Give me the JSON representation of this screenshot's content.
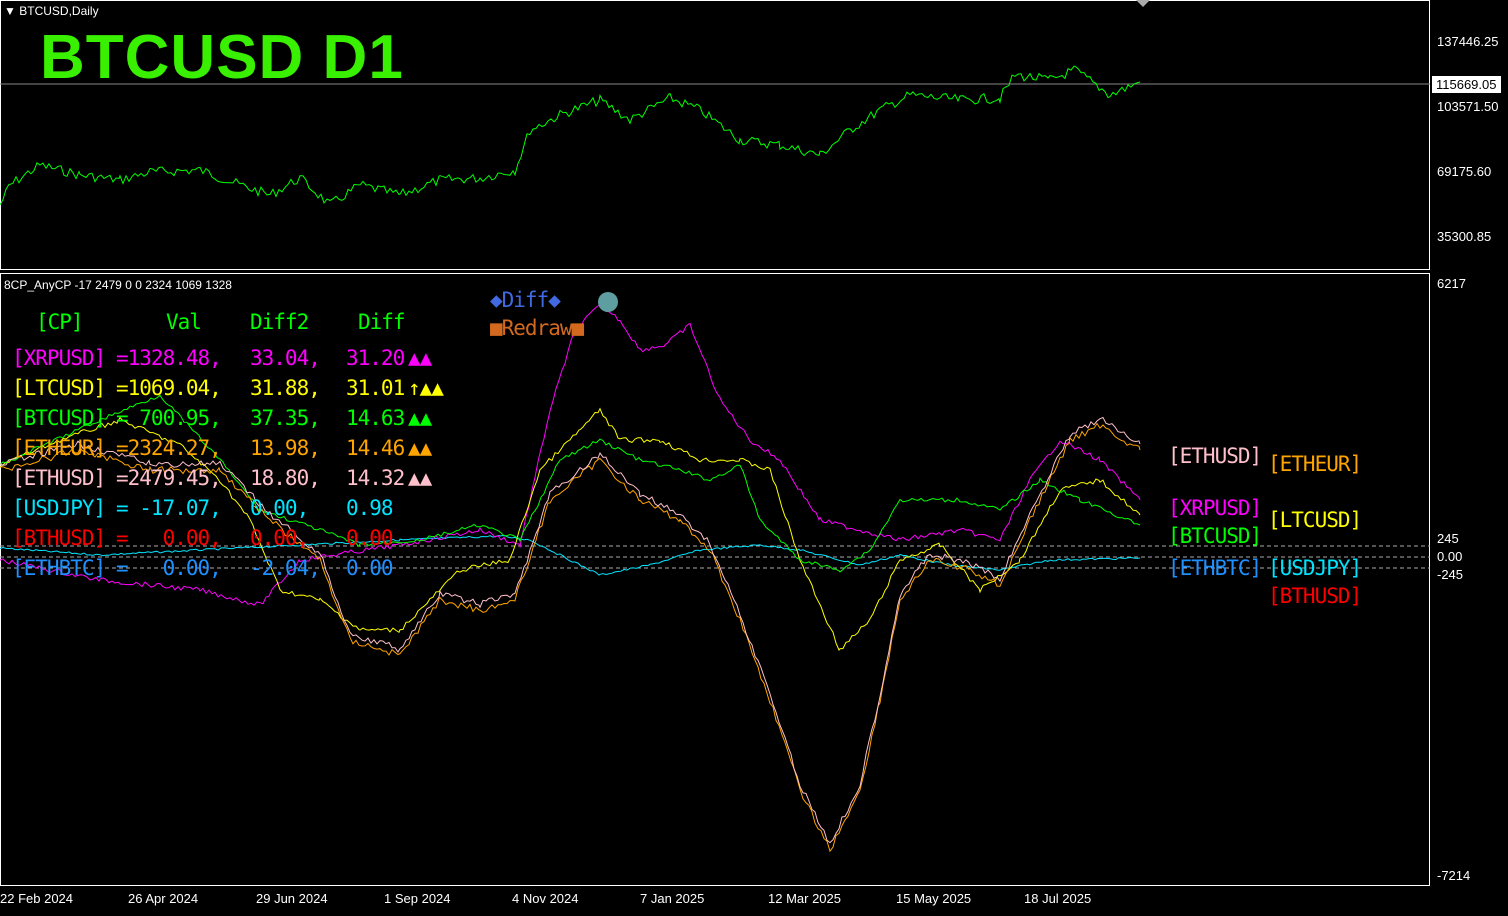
{
  "main_chart": {
    "symbol_title": "BTCUSD,Daily",
    "big_title": "BTCUSD  D1",
    "price_axis": [
      "137446.25",
      "103571.50",
      "69175.60",
      "35300.85"
    ],
    "current_price": "115669.05",
    "line_color": "#00ff00"
  },
  "indicator": {
    "title": "8CP_AnyCP -17 2479 0 0 2324 1069 1328",
    "axis": {
      "top": "6217",
      "upper": "245",
      "zero": "0.00",
      "lower": "-245",
      "bottom": "-7214"
    },
    "buttons": {
      "diff": "◆Diff◆",
      "redraw": "■Redraw■"
    },
    "table": {
      "headers": {
        "cp": "[CP]",
        "val": "Val",
        "diff2": "Diff2",
        "diff": "Diff"
      },
      "rows": [
        {
          "pair": "[XRPUSD]",
          "val": "=1328.48,",
          "diff2": "33.04,",
          "diff": "31.20",
          "marks": "▲▲",
          "color": "#ff00ff"
        },
        {
          "pair": "[LTCUSD]",
          "val": "=1069.04,",
          "diff2": "31.88,",
          "diff": "31.01",
          "marks": "↑▲▲",
          "color": "#ffff00"
        },
        {
          "pair": "[BTCUSD]",
          "val": "= 700.95,",
          "diff2": "37.35,",
          "diff": "14.63",
          "marks": "▲▲",
          "color": "#00ff00"
        },
        {
          "pair": "[ETHEUR]",
          "val": "=2324.27,",
          "diff2": "13.98,",
          "diff": "14.46",
          "marks": "▲▲",
          "color": "#ffa500"
        },
        {
          "pair": "[ETHUSD]",
          "val": "=2479.45,",
          "diff2": "18.80,",
          "diff": "14.32",
          "marks": "▲▲",
          "color": "#ffc0cb"
        },
        {
          "pair": "[USDJPY]",
          "val": "= -17.07,",
          "diff2": "0.00,",
          "diff": "0.98",
          "marks": "",
          "color": "#00e5ff"
        },
        {
          "pair": "[BTHUSD]",
          "val": "=   0.00,",
          "diff2": "0.00,",
          "diff": "0.00",
          "marks": "",
          "color": "#ff0000"
        },
        {
          "pair": "[ETHBTC]",
          "val": "=   0.00,",
          "diff2": "-2.04,",
          "diff": "0.00",
          "marks": "",
          "color": "#1e90ff"
        }
      ]
    },
    "end_labels": {
      "ethusd": "[ETHUSD]",
      "etheur": "[ETHEUR]",
      "xrpusd": "[XRPUSD]",
      "ltcusd": "[LTCUSD]",
      "btcusd": "[BTCUSD]",
      "ethbtc": "[ETHBTC]",
      "usdjpy": "[USDJPY]",
      "bthusd": "[BTHUSD]"
    }
  },
  "time_axis": [
    "22 Feb 2024",
    "26 Apr 2024",
    "29 Jun 2024",
    "1 Sep 2024",
    "4 Nov 2024",
    "7 Jan 2025",
    "12 Mar 2025",
    "15 May 2025",
    "18 Jul 2025"
  ]
}
